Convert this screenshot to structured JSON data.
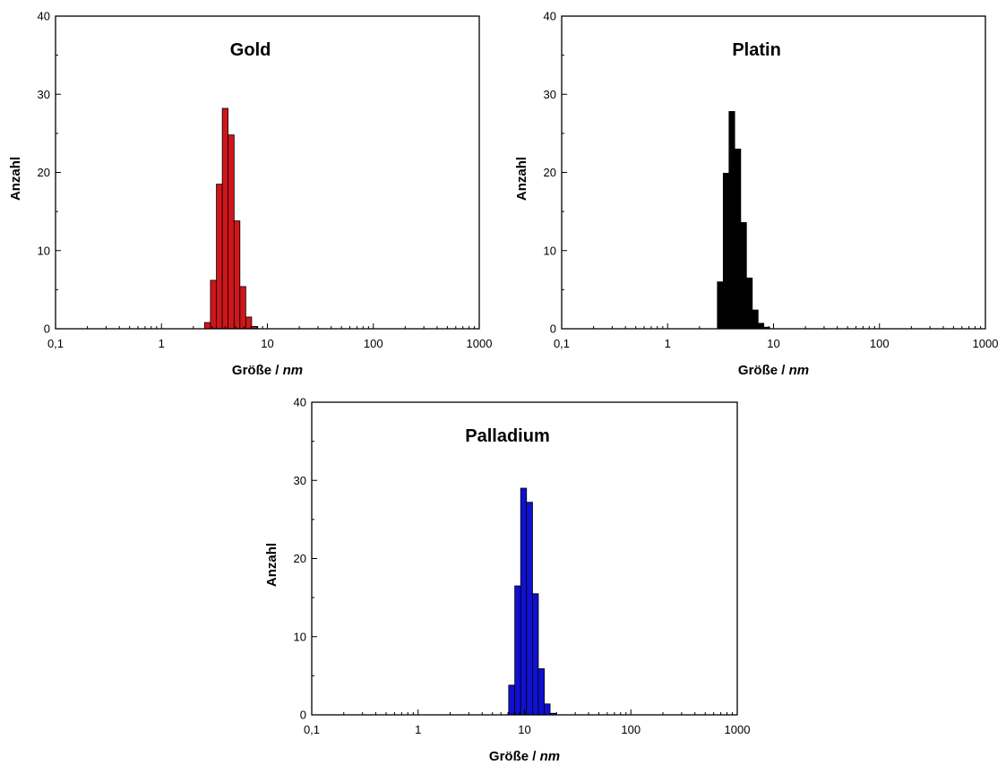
{
  "chart_data": [
    {
      "type": "bar",
      "title": "Gold",
      "xlabel": "Größe / ",
      "xlabel_unit": "nm",
      "ylabel": "Anzahl",
      "x_scale": "log",
      "xlim": [
        0.1,
        1000
      ],
      "ylim": [
        0,
        40
      ],
      "x_tick_labels": [
        "0,1",
        "1",
        "10",
        "100",
        "1000"
      ],
      "y_tick_labels": [
        "0",
        "10",
        "20",
        "30",
        "40"
      ],
      "color": "#d0161b",
      "bins": [
        {
          "x_start": 2.55,
          "x_end": 2.9,
          "value": 0.8
        },
        {
          "x_start": 2.9,
          "x_end": 3.3,
          "value": 6.2
        },
        {
          "x_start": 3.3,
          "x_end": 3.75,
          "value": 18.5
        },
        {
          "x_start": 3.75,
          "x_end": 4.25,
          "value": 28.2
        },
        {
          "x_start": 4.25,
          "x_end": 4.85,
          "value": 24.8
        },
        {
          "x_start": 4.85,
          "x_end": 5.5,
          "value": 13.8
        },
        {
          "x_start": 5.5,
          "x_end": 6.25,
          "value": 5.4
        },
        {
          "x_start": 6.25,
          "x_end": 7.1,
          "value": 1.5
        },
        {
          "x_start": 7.1,
          "x_end": 8.1,
          "value": 0.3
        }
      ]
    },
    {
      "type": "bar",
      "title": "Platin",
      "xlabel": "Größe / ",
      "xlabel_unit": "nm",
      "ylabel": "Anzahl",
      "x_scale": "log",
      "xlim": [
        0.1,
        1000
      ],
      "ylim": [
        0,
        40
      ],
      "x_tick_labels": [
        "0,1",
        "1",
        "10",
        "100",
        "1000"
      ],
      "y_tick_labels": [
        "0",
        "10",
        "20",
        "30",
        "40"
      ],
      "color": "#000000",
      "bins": [
        {
          "x_start": 2.95,
          "x_end": 3.35,
          "value": 6.0
        },
        {
          "x_start": 3.35,
          "x_end": 3.8,
          "value": 19.9
        },
        {
          "x_start": 3.8,
          "x_end": 4.3,
          "value": 27.8
        },
        {
          "x_start": 4.3,
          "x_end": 4.9,
          "value": 23.0
        },
        {
          "x_start": 4.9,
          "x_end": 5.55,
          "value": 13.6
        },
        {
          "x_start": 5.55,
          "x_end": 6.3,
          "value": 6.5
        },
        {
          "x_start": 6.3,
          "x_end": 7.15,
          "value": 2.4
        },
        {
          "x_start": 7.15,
          "x_end": 8.1,
          "value": 0.7
        },
        {
          "x_start": 8.1,
          "x_end": 9.2,
          "value": 0.2
        }
      ]
    },
    {
      "type": "bar",
      "title": "Palladium",
      "xlabel": "Größe / ",
      "xlabel_unit": "nm",
      "ylabel": "Anzahl",
      "x_scale": "log",
      "xlim": [
        0.1,
        1000
      ],
      "ylim": [
        0,
        40
      ],
      "x_tick_labels": [
        "0,1",
        "1",
        "10",
        "100",
        "1000"
      ],
      "y_tick_labels": [
        "0",
        "10",
        "20",
        "30",
        "40"
      ],
      "color": "#1010d0",
      "bins": [
        {
          "x_start": 7.1,
          "x_end": 8.1,
          "value": 3.8
        },
        {
          "x_start": 8.1,
          "x_end": 9.2,
          "value": 16.5
        },
        {
          "x_start": 9.2,
          "x_end": 10.45,
          "value": 29.0
        },
        {
          "x_start": 10.45,
          "x_end": 11.9,
          "value": 27.2
        },
        {
          "x_start": 11.9,
          "x_end": 13.5,
          "value": 15.5
        },
        {
          "x_start": 13.5,
          "x_end": 15.35,
          "value": 5.9
        },
        {
          "x_start": 15.35,
          "x_end": 17.4,
          "value": 1.4
        },
        {
          "x_start": 17.4,
          "x_end": 19.8,
          "value": 0.2
        }
      ]
    }
  ]
}
